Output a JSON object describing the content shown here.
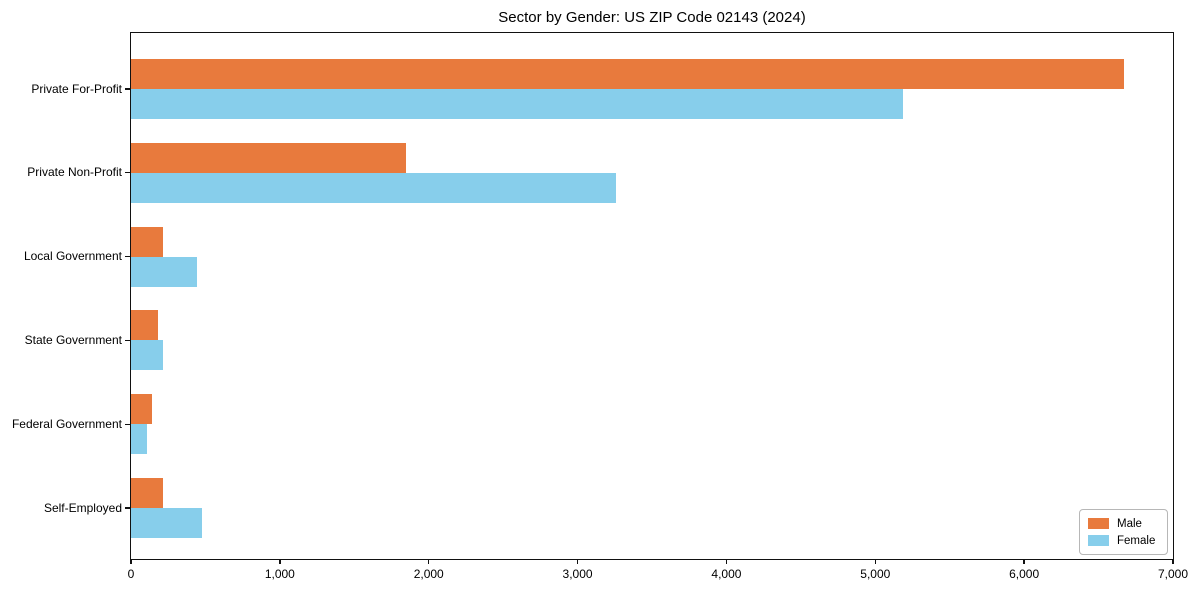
{
  "chart_data": {
    "type": "bar",
    "orientation": "horizontal",
    "title": "Sector by Gender: US ZIP Code 02143 (2024)",
    "categories": [
      "Private For-Profit",
      "Private Non-Profit",
      "Local Government",
      "State Government",
      "Federal Government",
      "Self-Employed"
    ],
    "series": [
      {
        "name": "Male",
        "color": "#e87a3d",
        "values": [
          6670,
          1845,
          215,
          180,
          140,
          215
        ]
      },
      {
        "name": "Female",
        "color": "#87ceeb",
        "values": [
          5185,
          3260,
          445,
          215,
          105,
          480
        ]
      }
    ],
    "xlim": [
      0,
      7000
    ],
    "xticks": [
      0,
      1000,
      2000,
      3000,
      4000,
      5000,
      6000,
      7000
    ],
    "xtick_labels": [
      "0",
      "1,000",
      "2,000",
      "3,000",
      "4,000",
      "5,000",
      "6,000",
      "7,000"
    ],
    "ylabel": "",
    "xlabel": "",
    "grid": false,
    "legend": {
      "position": "lower right",
      "entries": [
        "Male",
        "Female"
      ]
    }
  }
}
